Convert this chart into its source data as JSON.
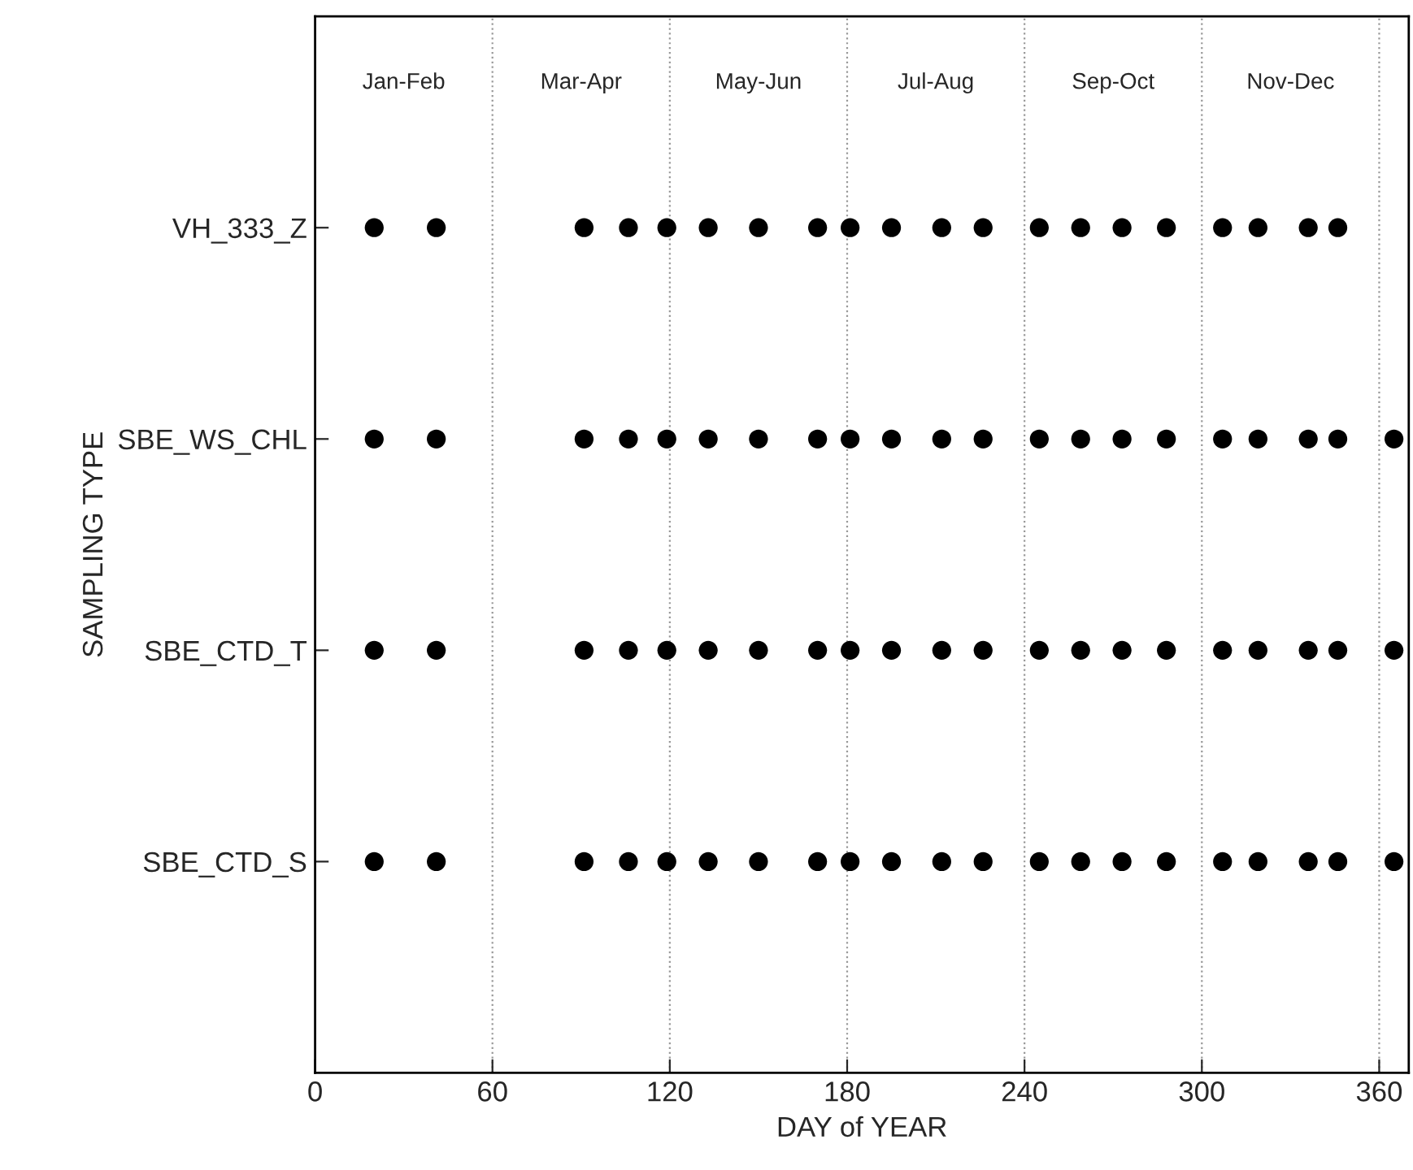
{
  "chart_data": {
    "type": "scatter",
    "orientation": "horizontal",
    "xlabel": "DAY of YEAR",
    "ylabel": "SAMPLING TYPE",
    "categories": [
      "VH_333_Z",
      "SBE_WS_CHL",
      "SBE_CTD_T",
      "SBE_CTD_S"
    ],
    "series": [
      {
        "color": "#000000",
        "values": [
          20,
          20,
          20,
          20
        ]
      },
      {
        "color": "#000000",
        "values": [
          41,
          41,
          41,
          41
        ]
      },
      {
        "color": "#000000",
        "values": [
          91,
          91,
          91,
          91
        ]
      },
      {
        "color": "#000000",
        "values": [
          106,
          106,
          106,
          106
        ]
      },
      {
        "color": "#000000",
        "values": [
          119,
          119,
          119,
          119
        ]
      },
      {
        "color": "#000000",
        "values": [
          133,
          133,
          133,
          133
        ]
      },
      {
        "color": "#000000",
        "values": [
          150,
          150,
          150,
          150
        ]
      },
      {
        "color": "#000000",
        "values": [
          170,
          170,
          170,
          170
        ]
      },
      {
        "color": "#000000",
        "values": [
          181,
          181,
          181,
          181
        ]
      },
      {
        "color": "#000000",
        "values": [
          195,
          195,
          195,
          195
        ]
      },
      {
        "color": "#000000",
        "values": [
          212,
          212,
          212,
          212
        ]
      },
      {
        "color": "#000000",
        "values": [
          226,
          226,
          226,
          226
        ]
      },
      {
        "color": "#000000",
        "values": [
          245,
          245,
          245,
          245
        ]
      },
      {
        "color": "#000000",
        "values": [
          259,
          259,
          259,
          259
        ]
      },
      {
        "color": "#000000",
        "values": [
          273,
          273,
          273,
          273
        ]
      },
      {
        "color": "#000000",
        "values": [
          288,
          288,
          288,
          288
        ]
      },
      {
        "color": "#000000",
        "values": [
          307,
          307,
          307,
          307
        ]
      },
      {
        "color": "#000000",
        "values": [
          319,
          319,
          319,
          319
        ]
      },
      {
        "color": "#000000",
        "values": [
          336,
          336,
          336,
          336
        ]
      },
      {
        "color": "#000000",
        "values": [
          346,
          346,
          346,
          346
        ]
      },
      {
        "color": "#000000",
        "values": [
          null,
          365,
          365,
          365
        ]
      }
    ],
    "xlim": [
      0,
      370
    ],
    "xticks": [
      0,
      60,
      120,
      180,
      240,
      300,
      360
    ],
    "grid": "x",
    "marker": "circle",
    "annotations": [
      "Jan-Feb",
      "Mar-Apr",
      "May-Jun",
      "Jul-Aug",
      "Sep-Oct",
      "Nov-Dec"
    ]
  }
}
